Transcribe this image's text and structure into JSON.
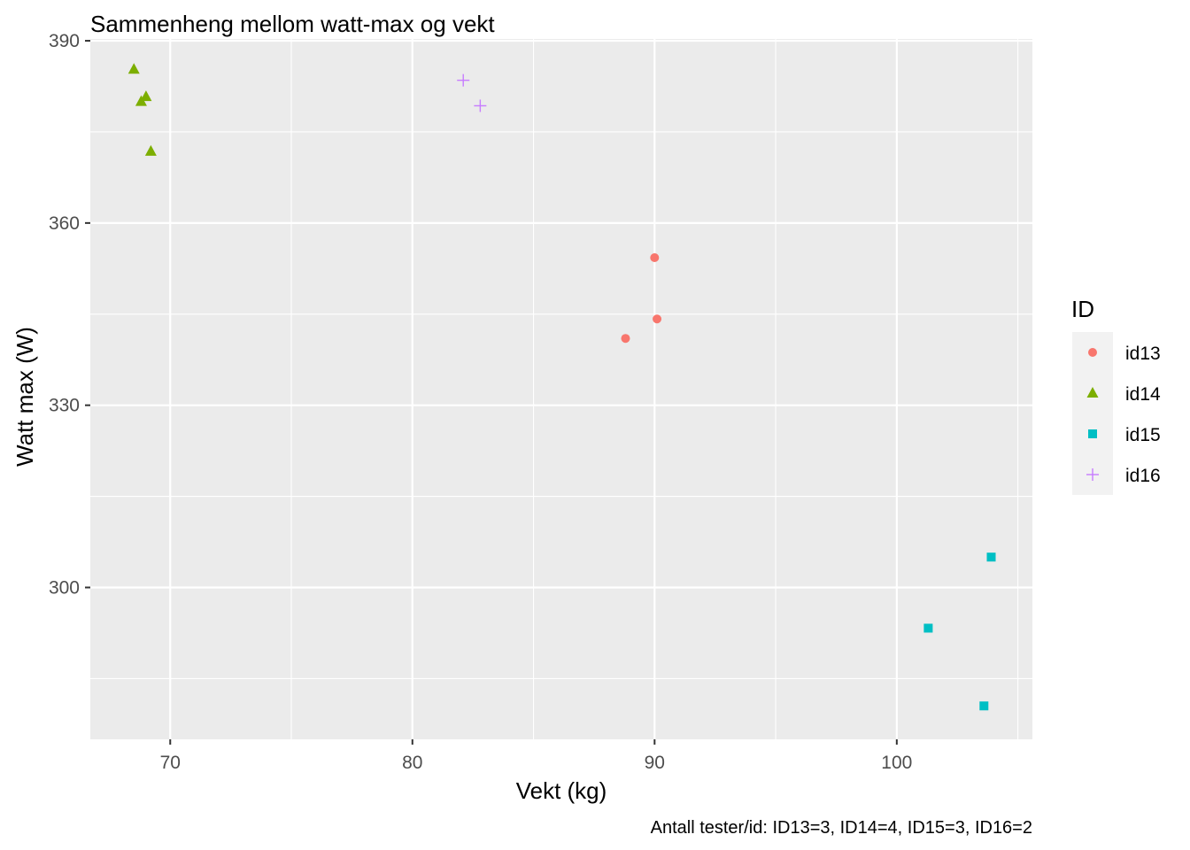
{
  "chart_data": {
    "type": "scatter",
    "title": "Sammenheng mellom watt-max og vekt",
    "xlabel": "Vekt (kg)",
    "ylabel": "Watt max (W)",
    "caption": "Antall tester/id: ID13=3, ID14=4, ID15=3, ID16=2",
    "xlim": [
      66.7,
      105.6
    ],
    "ylim": [
      275.0,
      390.3
    ],
    "x_ticks": [
      70,
      80,
      90,
      100
    ],
    "y_ticks": [
      300,
      330,
      360,
      390
    ],
    "x_minor": [
      75,
      85,
      95,
      105
    ],
    "y_minor": [
      285,
      315,
      345,
      375
    ],
    "grid": true,
    "panel_color": "#ebebeb",
    "grid_color": "#ffffff",
    "legend": {
      "title": "ID",
      "position": "right"
    },
    "series": [
      {
        "name": "id13",
        "color": "#F8766D",
        "shape": "circle",
        "points": [
          [
            90.0,
            354.3
          ],
          [
            90.1,
            344.2
          ],
          [
            88.8,
            341.0
          ]
        ]
      },
      {
        "name": "id14",
        "color": "#7CAE00",
        "shape": "triangle",
        "points": [
          [
            68.5,
            385.3
          ],
          [
            69.0,
            380.8
          ],
          [
            68.8,
            380.0
          ],
          [
            69.2,
            371.8
          ]
        ]
      },
      {
        "name": "id15",
        "color": "#00BFC4",
        "shape": "square",
        "points": [
          [
            103.9,
            305.0
          ],
          [
            101.3,
            293.3
          ],
          [
            103.6,
            280.5
          ]
        ]
      },
      {
        "name": "id16",
        "color": "#C77CFF",
        "shape": "plus",
        "points": [
          [
            82.1,
            383.5
          ],
          [
            82.8,
            379.3
          ]
        ]
      }
    ]
  }
}
